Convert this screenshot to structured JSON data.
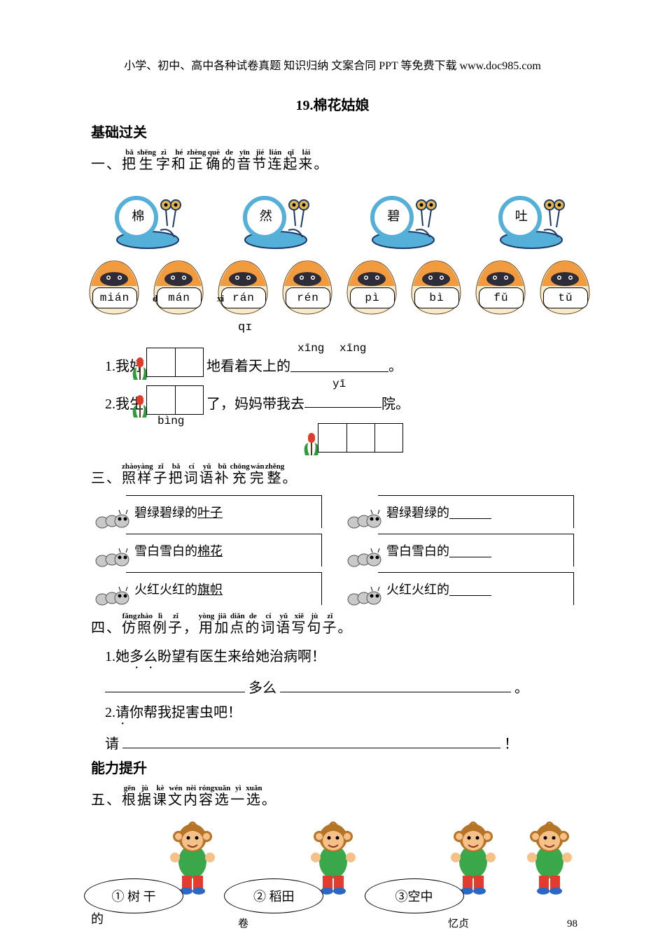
{
  "header": "小学、初中、高中各种试卷真题 知识归纳 文案合同 PPT 等免费下载  www.doc985.com",
  "title": "19.棉花姑娘",
  "section_basic": "基础过关",
  "ex1": {
    "heading_chars": [
      "一",
      "、",
      "把",
      "生",
      "字",
      "和",
      "正",
      "确",
      "的",
      "音",
      "节",
      "连",
      "起",
      "来",
      "。"
    ],
    "heading_pinyin": [
      "",
      "",
      "bǎ",
      "shēng",
      "zì",
      "hé",
      "zhèng",
      "què",
      "de",
      "yīn",
      "jié",
      "lián",
      "qǐ",
      "lái",
      ""
    ],
    "snails": [
      "棉",
      "然",
      "碧",
      "吐"
    ],
    "eggs": [
      "mián",
      "mán",
      "rán",
      "rén",
      "pì",
      "bì",
      "fǔ",
      "tǔ"
    ],
    "stray_d": "d",
    "stray_xi": "xi",
    "stray_qi": "qɪ"
  },
  "ex2_sentences": {
    "s1_prefix": "1.我好",
    "s1_mid": "地看着天上的",
    "s1_end": "。",
    "p_xing1": "xīng",
    "p_xing2": "xīng",
    "s2_prefix": "2.我生",
    "s2_mid": "了，妈妈带我去",
    "s2_end": "院。",
    "p_bing": "bìng",
    "p_yi": "yī"
  },
  "ex3": {
    "heading_chars": [
      "三",
      "、",
      "照",
      "样",
      "子",
      "把",
      "词",
      "语",
      "补",
      "充",
      "完",
      "整",
      "。"
    ],
    "heading_pinyin": [
      "",
      "",
      "zhào",
      "yàng",
      "zǐ",
      "bǎ",
      "cí",
      "yǔ",
      "bǔ",
      "chōng",
      "wán",
      "zhěng",
      ""
    ],
    "left": [
      {
        "pre": "碧绿碧绿的",
        "u": "叶子"
      },
      {
        "pre": "雪白雪白的",
        "u": "棉花"
      },
      {
        "pre": "火红火红的",
        "u": "旗帜"
      }
    ],
    "right": [
      {
        "pre": "碧绿碧绿的"
      },
      {
        "pre": "雪白雪白的"
      },
      {
        "pre": "火红火红的"
      }
    ]
  },
  "ex4": {
    "heading_chars": [
      "四",
      "、",
      "仿",
      "照",
      "例",
      "子",
      "，",
      "用",
      "加",
      "点",
      "的",
      "词",
      "语",
      "写",
      "句",
      "子",
      "。"
    ],
    "heading_pinyin": [
      "",
      "",
      "fǎng",
      "zhào",
      "lì",
      "zǐ",
      "",
      "yòng",
      "jiā",
      "diǎn",
      "de",
      "cí",
      "yǔ",
      "xiě",
      "jù",
      "zǐ",
      ""
    ],
    "s1": "1.她",
    "s1_dot": "多么",
    "s1_rest": "盼望有医生来给她治病啊！",
    "blank1_mid": "多么",
    "blank1_end": "。",
    "s2": "2.",
    "s2_dot": "请",
    "s2_rest": "你帮我捉害虫吧！",
    "blank2_start": "请",
    "blank2_end": "！"
  },
  "section_ability": "能力提升",
  "ex5": {
    "heading_chars": [
      "五",
      "、",
      "根",
      "据",
      "课",
      "文",
      "内",
      "容",
      "选",
      "一",
      "选",
      "。"
    ],
    "heading_pinyin": [
      "",
      "",
      "gēn",
      "jù",
      "kè",
      "wén",
      "nèi",
      "róng",
      "xuǎn",
      "yì",
      "xuǎn",
      ""
    ],
    "labels": [
      "① 树 干",
      "② 稻田",
      "③空中"
    ],
    "partial": "的"
  },
  "footer_fragments": {
    "a": "卷",
    "b": "忆贞",
    "c": "98"
  },
  "colors": {
    "snail_body": "#54b0d8",
    "snail_outline": "#1b3a6b",
    "snail_eye": "#e9b64a",
    "egg_top": "#f19a3e",
    "egg_band": "#2f2c3a",
    "egg_cream": "#f7eacb",
    "tulip_leaf": "#2e9b3a",
    "tulip_flower": "#e23b2a",
    "tulip_stem": "#5c3a1e",
    "caterpillar": "#c9c9c9",
    "monkey_skin": "#f6c089",
    "monkey_hair": "#b57426",
    "monkey_shirt": "#3aa84a",
    "monkey_pants": "#e33b2e",
    "monkey_shoe": "#2a68c4"
  }
}
